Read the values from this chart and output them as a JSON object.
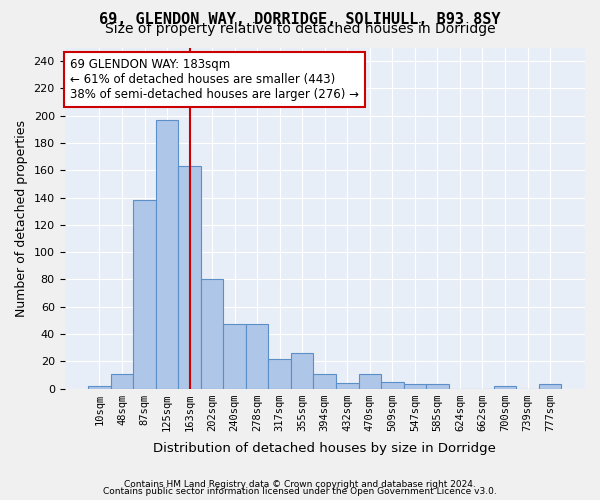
{
  "title_line1": "69, GLENDON WAY, DORRIDGE, SOLIHULL, B93 8SY",
  "title_line2": "Size of property relative to detached houses in Dorridge",
  "xlabel": "Distribution of detached houses by size in Dorridge",
  "ylabel": "Number of detached properties",
  "footer_line1": "Contains HM Land Registry data © Crown copyright and database right 2024.",
  "footer_line2": "Contains public sector information licensed under the Open Government Licence v3.0.",
  "categories": [
    "10sqm",
    "48sqm",
    "87sqm",
    "125sqm",
    "163sqm",
    "202sqm",
    "240sqm",
    "278sqm",
    "317sqm",
    "355sqm",
    "394sqm",
    "432sqm",
    "470sqm",
    "509sqm",
    "547sqm",
    "585sqm",
    "624sqm",
    "662sqm",
    "700sqm",
    "739sqm",
    "777sqm"
  ],
  "values": [
    2,
    11,
    138,
    197,
    163,
    80,
    47,
    47,
    22,
    26,
    11,
    4,
    11,
    5,
    3,
    3,
    0,
    0,
    2,
    0,
    3
  ],
  "bar_color": "#aec6e8",
  "bar_edge_color": "#5b8fc9",
  "highlight_bar_index": 4,
  "highlight_line_color": "#cc0000",
  "annotation_text": "69 GLENDON WAY: 183sqm\n← 61% of detached houses are smaller (443)\n38% of semi-detached houses are larger (276) →",
  "annotation_box_color": "#ffffff",
  "annotation_box_edge_color": "#cc0000",
  "ylim": [
    0,
    250
  ],
  "yticks": [
    0,
    20,
    40,
    60,
    80,
    100,
    120,
    140,
    160,
    180,
    200,
    220,
    240
  ],
  "bg_color": "#e8eef7",
  "fig_bg_color": "#f0f0f0",
  "title_fontsize": 11,
  "subtitle_fontsize": 10
}
